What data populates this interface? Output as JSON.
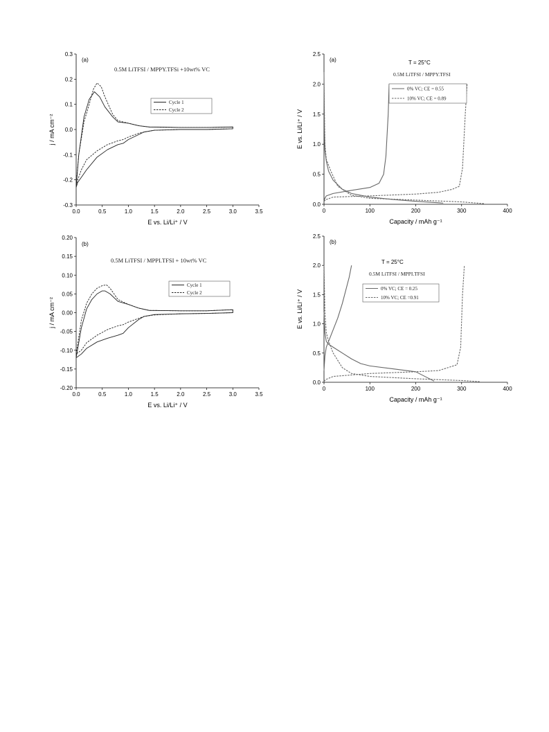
{
  "chart_data": [
    {
      "type": "line",
      "panel_label": "(a)",
      "annotation": "0.5M LiTFSI / MPPY.TFSi +10wt% VC",
      "xlabel": "E vs. Li/Li⁺ / V",
      "ylabel": "j / mA cm⁻²",
      "xlim": [
        0,
        3.5
      ],
      "ylim": [
        -0.3,
        0.3
      ],
      "xticks": [
        "0.0",
        "0.5",
        "1.0",
        "1.5",
        "2.0",
        "2.5",
        "3.0",
        "3.5"
      ],
      "yticks": [
        "-0.3",
        "-0.2",
        "-0.1",
        "0.0",
        "0.1",
        "0.2",
        "0.3"
      ],
      "legend_position": "top-right",
      "series": [
        {
          "name": "Cycle 1",
          "style": "solid",
          "x": [
            0.0,
            0.05,
            0.15,
            0.25,
            0.35,
            0.45,
            0.55,
            0.7,
            0.8,
            1.0,
            1.2,
            1.4,
            2.0,
            2.5,
            3.0,
            3.0,
            2.5,
            2.0,
            1.5,
            1.3,
            1.2,
            1.0,
            0.9,
            0.8,
            0.6,
            0.4,
            0.2,
            0.1,
            0.03,
            0.0
          ],
          "y": [
            -0.23,
            -0.1,
            0.05,
            0.12,
            0.15,
            0.13,
            0.09,
            0.05,
            0.03,
            0.025,
            0.015,
            0.01,
            0.008,
            0.008,
            0.01,
            0.003,
            0.0,
            0.0,
            -0.003,
            -0.01,
            -0.02,
            -0.04,
            -0.055,
            -0.06,
            -0.08,
            -0.11,
            -0.16,
            -0.19,
            -0.21,
            -0.23
          ]
        },
        {
          "name": "Cycle 2",
          "style": "dashed",
          "x": [
            0.0,
            0.05,
            0.15,
            0.25,
            0.33,
            0.4,
            0.48,
            0.55,
            0.7,
            0.8,
            1.0,
            1.2,
            1.4,
            2.0,
            2.5,
            3.0,
            3.0,
            2.5,
            2.0,
            1.5,
            1.3,
            1.2,
            1.0,
            0.9,
            0.8,
            0.6,
            0.4,
            0.2,
            0.1,
            0.03,
            0.0
          ],
          "y": [
            -0.22,
            -0.1,
            0.03,
            0.1,
            0.16,
            0.185,
            0.17,
            0.13,
            0.06,
            0.035,
            0.025,
            0.015,
            0.01,
            0.008,
            0.008,
            0.01,
            0.003,
            0.0,
            0.0,
            -0.003,
            -0.01,
            -0.015,
            -0.03,
            -0.04,
            -0.045,
            -0.06,
            -0.085,
            -0.12,
            -0.16,
            -0.2,
            -0.22
          ]
        }
      ]
    },
    {
      "type": "line",
      "panel_label": "(b)",
      "annotation": "0.5M LiTFSI / MPPI.TFSI + 10wt% VC",
      "xlabel": "E vs. Li/Li⁺ / V",
      "ylabel": "j / mA cm⁻²",
      "xlim": [
        0,
        3.5
      ],
      "ylim": [
        -0.2,
        0.2
      ],
      "xticks": [
        "0.0",
        "0.5",
        "1.0",
        "1.5",
        "2.0",
        "2.5",
        "3.0",
        "3.5"
      ],
      "yticks": [
        "-0.20",
        "-0.15",
        "-0.10",
        "-0.05",
        "0.00",
        "0.05",
        "0.10",
        "0.15",
        "0.20"
      ],
      "legend_position": "top-right",
      "series": [
        {
          "name": "Cycle 1",
          "style": "solid",
          "x": [
            0.0,
            0.1,
            0.2,
            0.3,
            0.4,
            0.5,
            0.55,
            0.65,
            0.8,
            1.0,
            1.2,
            1.4,
            2.0,
            2.5,
            3.0,
            3.0,
            2.5,
            2.0,
            1.5,
            1.3,
            1.2,
            1.0,
            0.9,
            0.8,
            0.6,
            0.4,
            0.2,
            0.1,
            0.0
          ],
          "y": [
            -0.12,
            -0.04,
            0.01,
            0.035,
            0.05,
            0.058,
            0.058,
            0.05,
            0.03,
            0.022,
            0.012,
            0.006,
            0.005,
            0.005,
            0.008,
            0.0,
            -0.002,
            -0.003,
            -0.005,
            -0.01,
            -0.018,
            -0.04,
            -0.055,
            -0.06,
            -0.068,
            -0.078,
            -0.095,
            -0.11,
            -0.12
          ]
        },
        {
          "name": "Cycle 2",
          "style": "dashed",
          "x": [
            0.0,
            0.1,
            0.2,
            0.3,
            0.4,
            0.5,
            0.58,
            0.65,
            0.8,
            1.0,
            1.2,
            1.4,
            2.0,
            2.5,
            3.0,
            3.0,
            2.5,
            2.0,
            1.5,
            1.3,
            1.2,
            1.0,
            0.9,
            0.8,
            0.6,
            0.4,
            0.2,
            0.1,
            0.0
          ],
          "y": [
            -0.11,
            -0.02,
            0.025,
            0.05,
            0.065,
            0.072,
            0.074,
            0.065,
            0.035,
            0.022,
            0.012,
            0.006,
            0.005,
            0.005,
            0.008,
            0.0,
            -0.002,
            -0.003,
            -0.006,
            -0.01,
            -0.015,
            -0.025,
            -0.032,
            -0.035,
            -0.045,
            -0.06,
            -0.08,
            -0.1,
            -0.11
          ]
        }
      ]
    },
    {
      "type": "line",
      "panel_label": "(a)",
      "annotation": "0.5M LiTFSI / MPPY.TFSI",
      "temperature": "T = 25°C",
      "xlabel": "Capacity / mAh g⁻¹",
      "ylabel": "E vs. Li/Li⁺ / V",
      "xlim": [
        0,
        400
      ],
      "ylim": [
        0,
        2.5
      ],
      "xticks": [
        "0",
        "100",
        "200",
        "300",
        "400"
      ],
      "yticks": [
        "0.0",
        "0.5",
        "1.0",
        "1.5",
        "2.0",
        "2.5"
      ],
      "legend_position": "top-right",
      "series": [
        {
          "name": "0% VC; CE = 0.55",
          "style": "solid",
          "segments": [
            {
              "x": [
                0,
                1,
                2,
                5,
                10,
                20,
                40,
                60,
                100,
                150,
                200,
                260
              ],
              "y": [
                2.2,
                1.2,
                0.9,
                0.72,
                0.55,
                0.4,
                0.25,
                0.18,
                0.12,
                0.08,
                0.05,
                0.02
              ]
            },
            {
              "x": [
                0,
                2,
                5,
                20,
                50,
                100,
                120,
                130,
                135,
                140,
                142
              ],
              "y": [
                0.05,
                0.1,
                0.14,
                0.18,
                0.22,
                0.28,
                0.35,
                0.5,
                0.8,
                1.5,
                2.0
              ]
            }
          ]
        },
        {
          "name": "10% VC; CE = 0.89",
          "style": "dashed",
          "segments": [
            {
              "x": [
                0,
                2,
                5,
                15,
                30,
                60,
                100,
                200,
                300,
                350
              ],
              "y": [
                2.0,
                1.0,
                0.75,
                0.55,
                0.3,
                0.15,
                0.1,
                0.07,
                0.04,
                0.01
              ]
            },
            {
              "x": [
                0,
                5,
                20,
                100,
                200,
                250,
                280,
                295,
                302,
                308,
                312
              ],
              "y": [
                0.05,
                0.08,
                0.12,
                0.14,
                0.17,
                0.2,
                0.25,
                0.3,
                0.6,
                1.5,
                2.0
              ]
            }
          ]
        }
      ]
    },
    {
      "type": "line",
      "panel_label": "(b)",
      "annotation": "0.5M LiTFSI / MPPI.TFSI",
      "temperature": "T = 25°C",
      "xlabel": "Capacity / mAh g⁻¹",
      "ylabel": "E vs. Li/Li⁺ / V",
      "xlim": [
        0,
        400
      ],
      "ylim": [
        0,
        2.5
      ],
      "xticks": [
        "0",
        "100",
        "200",
        "300",
        "400"
      ],
      "yticks": [
        "0.0",
        "0.5",
        "1.0",
        "1.5",
        "2.0",
        "2.5"
      ],
      "legend_position": "top-right",
      "series": [
        {
          "name": "0% VC; CE = 0.25",
          "style": "solid",
          "segments": [
            {
              "x": [
                0,
                2,
                5,
                10,
                20,
                40,
                60,
                80,
                100,
                150,
                200,
                220,
                240
              ],
              "y": [
                1.2,
                0.85,
                0.7,
                0.65,
                0.6,
                0.5,
                0.4,
                0.32,
                0.28,
                0.23,
                0.18,
                0.1,
                0.02
              ]
            },
            {
              "x": [
                0,
                2,
                5,
                10,
                20,
                30,
                40,
                50,
                55,
                60
              ],
              "y": [
                0.2,
                0.45,
                0.6,
                0.7,
                0.9,
                1.1,
                1.35,
                1.65,
                1.8,
                2.0
              ]
            }
          ]
        },
        {
          "name": "10% VC; CE =0.91",
          "style": "dashed",
          "segments": [
            {
              "x": [
                0,
                2,
                5,
                10,
                20,
                40,
                60,
                100,
                200,
                300,
                340
              ],
              "y": [
                2.0,
                1.2,
                0.85,
                0.7,
                0.5,
                0.25,
                0.15,
                0.1,
                0.06,
                0.03,
                0.01
              ]
            },
            {
              "x": [
                0,
                5,
                20,
                100,
                200,
                250,
                270,
                290,
                298,
                302,
                306
              ],
              "y": [
                0.02,
                0.05,
                0.1,
                0.15,
                0.18,
                0.2,
                0.25,
                0.3,
                0.6,
                1.5,
                2.0
              ]
            }
          ]
        }
      ]
    }
  ]
}
